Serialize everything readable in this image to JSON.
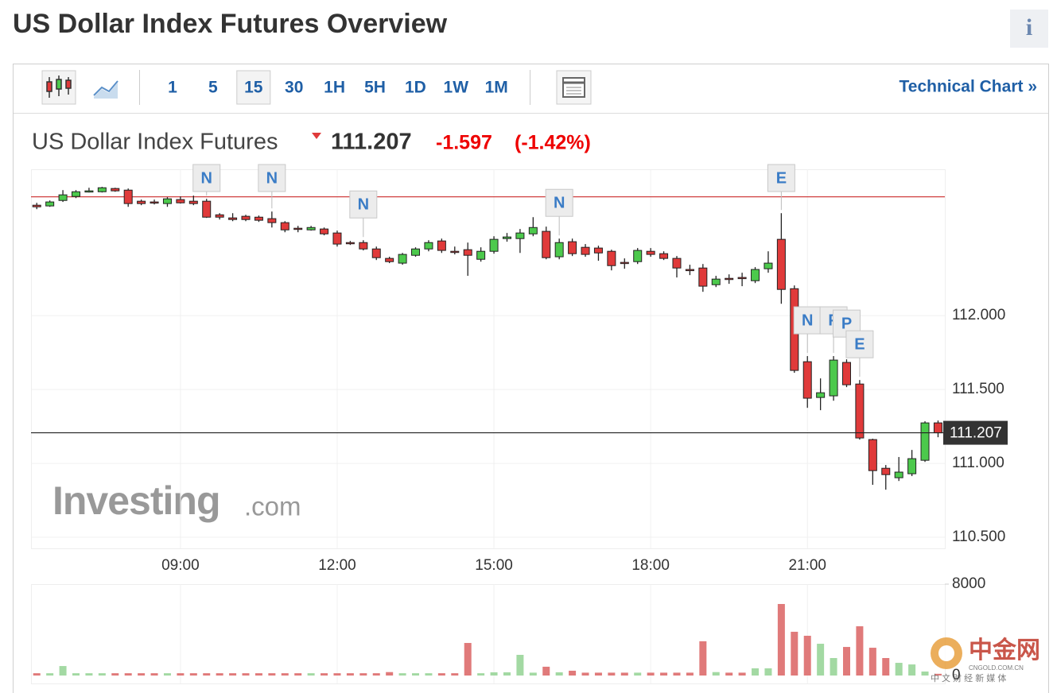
{
  "header": {
    "title": "US Dollar Index Futures Overview",
    "info": "i"
  },
  "toolbar": {
    "intervals": [
      "1",
      "5",
      "15",
      "30",
      "1H",
      "5H",
      "1D",
      "1W",
      "1M"
    ],
    "active": "15",
    "technical_chart": "Technical Chart »"
  },
  "quote": {
    "name": "US Dollar Index Futures",
    "price": 111.207,
    "change": -1.597,
    "change_pct": "(-1.42%)"
  },
  "watermark": {
    "brand": "Investing",
    "suffix": ".com",
    "corner_name": "中金网",
    "corner_url": "CNGOLD.COM.CN",
    "corner_sub": "中 文 财 经 新 媒 体"
  },
  "chart_data": {
    "type": "candlestick",
    "up_color": "#4cc94c",
    "down_color": "#e03a3a",
    "up_volume_color": "#a3d9a3",
    "down_volume_color": "#e07a7a",
    "prev_close": 112.804,
    "x": [
      6.25,
      6.5,
      6.75,
      7,
      7.25,
      7.5,
      7.75,
      8,
      8.25,
      8.5,
      8.75,
      9,
      9.25,
      9.5,
      9.75,
      10,
      10.25,
      10.5,
      10.75,
      11,
      11.25,
      11.5,
      11.75,
      12,
      12.25,
      12.5,
      12.75,
      13,
      13.25,
      13.5,
      13.75,
      14,
      14.25,
      14.5,
      14.75,
      15,
      15.25,
      15.5,
      15.75,
      16,
      16.25,
      16.5,
      16.75,
      17,
      17.25,
      17.5,
      17.75,
      18,
      18.25,
      18.5,
      18.75,
      19,
      19.25,
      19.5,
      19.75,
      20,
      20.25,
      20.5,
      20.75,
      21,
      21.25,
      21.5,
      21.75,
      22,
      22.25,
      22.5,
      22.75,
      23,
      23.25,
      23.5
    ],
    "open": [
      112.747,
      112.742,
      112.779,
      112.806,
      112.838,
      112.838,
      112.86,
      112.849,
      112.774,
      112.769,
      112.758,
      112.785,
      112.774,
      112.774,
      112.682,
      112.661,
      112.672,
      112.666,
      112.656,
      112.629,
      112.591,
      112.58,
      112.586,
      112.559,
      112.494,
      112.494,
      112.451,
      112.387,
      112.355,
      112.408,
      112.451,
      112.505,
      112.435,
      112.446,
      112.381,
      112.435,
      112.521,
      112.521,
      112.553,
      112.57,
      112.398,
      112.5,
      112.462,
      112.457,
      112.435,
      112.36,
      112.365,
      112.435,
      112.419,
      112.387,
      112.312,
      112.322,
      112.209,
      112.252,
      112.258,
      112.236,
      112.317,
      112.516,
      112.182,
      111.688,
      111.446,
      111.457,
      111.683,
      111.537,
      111.161,
      110.967,
      110.903,
      110.93,
      111.021,
      111.274
    ],
    "high": [
      112.763,
      112.779,
      112.849,
      112.849,
      112.865,
      112.871,
      112.865,
      112.86,
      112.785,
      112.785,
      112.801,
      112.806,
      112.812,
      112.79,
      112.693,
      112.693,
      112.682,
      112.677,
      112.704,
      112.639,
      112.607,
      112.607,
      112.596,
      112.575,
      112.505,
      112.51,
      112.467,
      112.398,
      112.424,
      112.462,
      112.51,
      112.521,
      112.467,
      112.494,
      112.462,
      112.537,
      112.559,
      112.586,
      112.666,
      112.602,
      112.521,
      112.521,
      112.484,
      112.473,
      112.446,
      112.387,
      112.457,
      112.457,
      112.435,
      112.403,
      112.344,
      112.349,
      112.269,
      112.279,
      112.29,
      112.328,
      112.435,
      112.693,
      112.204,
      111.726,
      111.575,
      111.726,
      111.704,
      111.564,
      111.167,
      110.989,
      111.043,
      111.091,
      111.285,
      111.29
    ],
    "low": [
      112.72,
      112.736,
      112.769,
      112.795,
      112.833,
      112.833,
      112.838,
      112.736,
      112.747,
      112.752,
      112.736,
      112.758,
      112.747,
      112.661,
      112.65,
      112.639,
      112.639,
      112.634,
      112.596,
      112.564,
      112.564,
      112.575,
      112.543,
      112.467,
      112.478,
      112.441,
      112.376,
      112.355,
      112.344,
      112.398,
      112.435,
      112.424,
      112.414,
      112.269,
      112.365,
      112.419,
      112.5,
      112.424,
      112.537,
      112.381,
      112.381,
      112.403,
      112.398,
      112.371,
      112.306,
      112.317,
      112.349,
      112.398,
      112.376,
      112.258,
      112.274,
      112.161,
      112.193,
      112.215,
      112.199,
      112.22,
      112.29,
      112.08,
      111.613,
      111.376,
      111.36,
      111.424,
      111.516,
      111.161,
      110.855,
      110.822,
      110.881,
      110.914,
      111.01,
      111.177
    ],
    "close": [
      112.736,
      112.769,
      112.817,
      112.838,
      112.844,
      112.865,
      112.844,
      112.758,
      112.758,
      112.763,
      112.79,
      112.763,
      112.758,
      112.666,
      112.666,
      112.65,
      112.65,
      112.645,
      112.629,
      112.58,
      112.586,
      112.596,
      112.553,
      112.484,
      112.489,
      112.451,
      112.392,
      112.365,
      112.414,
      112.451,
      112.494,
      112.441,
      112.43,
      112.408,
      112.435,
      112.516,
      112.532,
      112.559,
      112.596,
      112.392,
      112.494,
      112.419,
      112.414,
      112.424,
      112.338,
      112.355,
      112.441,
      112.414,
      112.387,
      112.322,
      112.306,
      112.199,
      112.247,
      112.247,
      112.252,
      112.312,
      112.355,
      112.177,
      111.629,
      111.441,
      111.478,
      111.699,
      111.532,
      111.172,
      110.951,
      110.924,
      110.941,
      111.032,
      111.274,
      111.207
    ],
    "volume": [
      200,
      200,
      830,
      200,
      200,
      200,
      200,
      200,
      200,
      200,
      200,
      200,
      200,
      200,
      200,
      200,
      200,
      200,
      200,
      200,
      200,
      200,
      200,
      200,
      200,
      200,
      200,
      300,
      200,
      200,
      200,
      200,
      200,
      2850,
      200,
      280,
      280,
      1810,
      250,
      770,
      280,
      420,
      250,
      250,
      250,
      250,
      250,
      250,
      250,
      250,
      250,
      3000,
      300,
      250,
      250,
      630,
      630,
      6260,
      3830,
      3480,
      2780,
      1530,
      2500,
      4310,
      2430,
      1530,
      1110,
      970,
      350,
      150
    ],
    "events": [
      {
        "label": "N",
        "x": 9.5
      },
      {
        "label": "N",
        "x": 10.75
      },
      {
        "label": "N",
        "x": 12.5
      },
      {
        "label": "N",
        "x": 16.25
      },
      {
        "label": "E",
        "x": 20.5
      },
      {
        "label": "N",
        "x": 21
      },
      {
        "label": "P",
        "x": 21.5
      },
      {
        "label": "P",
        "x": 21.75
      },
      {
        "label": "E",
        "x": 22
      }
    ],
    "xlim": [
      6.14,
      23.63
    ],
    "xticks": [
      {
        "value": 9,
        "label": "09:00"
      },
      {
        "value": 12,
        "label": "12:00"
      },
      {
        "value": 15,
        "label": "15:00"
      },
      {
        "value": 18,
        "label": "18:00"
      },
      {
        "value": 21,
        "label": "21:00"
      }
    ],
    "ylim": [
      110.425,
      112.99
    ],
    "yticks": [
      {
        "value": 110.5,
        "label": "110.500"
      },
      {
        "value": 111,
        "label": "111.000"
      },
      {
        "value": 111.5,
        "label": "111.500"
      },
      {
        "value": 112,
        "label": "112.000"
      }
    ],
    "volume_lim": [
      0,
      8000
    ],
    "volume_ticks": [
      0,
      8000
    ],
    "grid": true
  }
}
